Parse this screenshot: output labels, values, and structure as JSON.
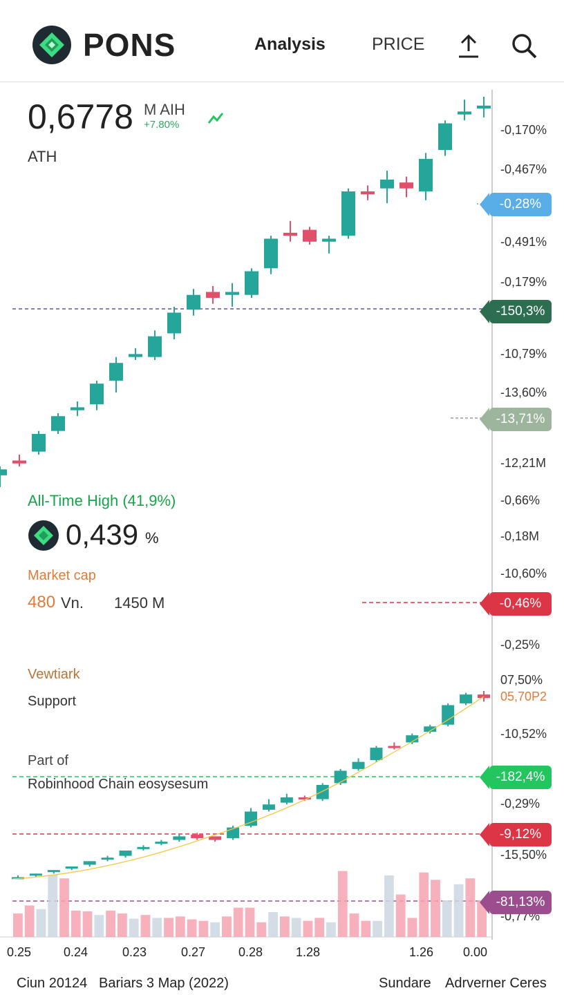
{
  "header": {
    "app_name": "PONS",
    "nav_analysis": "Analysis",
    "nav_price": "PRICE"
  },
  "summary": {
    "price": "0,6778",
    "unit": "M AIH",
    "change": "+7.80%",
    "ath_label": "ATH",
    "all_time_high": "All-Time High (41,9%)",
    "token_value": "0,439",
    "token_unit": "%",
    "market_cap_label": "Market cap",
    "market_cap_value": "480",
    "market_cap_unit": "Vn.",
    "market_cap_second": "1450 M",
    "viewmark": "Vewtiark",
    "support": "Support",
    "part_of": "Part of",
    "ecosystem": "Robinhood Chain eosysesum"
  },
  "axis_ticks": [
    "-0,170%",
    "-0,467%",
    "-0,491%",
    "-0,179%",
    "-10,79%",
    "-13,60%",
    "-12,21M",
    "-0,66%",
    "-0,18M",
    "-10,60%",
    "-0,25%",
    "07,50%",
    "05,70P2",
    "-10,52%",
    "-0,29%",
    "-15,50%",
    "-0,77%"
  ],
  "price_tags": [
    {
      "label": "-0,28%",
      "color": "#5aaee8"
    },
    {
      "label": "-150,3%",
      "color": "#2c6e4f"
    },
    {
      "label": "-13,71%",
      "color": "#9db59c"
    },
    {
      "label": "-0,46%",
      "color": "#dc3545"
    },
    {
      "label": "-182,4%",
      "color": "#22c55e"
    },
    {
      "label": "-9,12%",
      "color": "#dc3545"
    },
    {
      "label": "-81,13%",
      "color": "#9b4d8e"
    }
  ],
  "x_axis": [
    "0.25",
    "0.24",
    "0.23",
    "0.27",
    "0.28",
    "1.28",
    "1.26",
    "0.00"
  ],
  "footer": {
    "left": "Ciun 20124",
    "middle": "Bariars 3 Map  (2022)",
    "right_a": "Sundare",
    "right_b": "Adrverner Ceres"
  },
  "colors": {
    "up": "#26a69a",
    "down": "#e0506a",
    "accent": "#22c55e"
  },
  "icons": [
    "logo-icon",
    "upload-icon",
    "search-icon",
    "trend-icon",
    "token-icon"
  ],
  "chart_data": [
    {
      "type": "candlestick",
      "title": "",
      "series": [
        {
          "values": [
            [
              0.1,
              0.12,
              0.06,
              0.13
            ],
            [
              0.15,
              0.14,
              0.13,
              0.17
            ],
            [
              0.18,
              0.24,
              0.17,
              0.25
            ],
            [
              0.25,
              0.3,
              0.24,
              0.31
            ],
            [
              0.32,
              0.33,
              0.3,
              0.35
            ],
            [
              0.34,
              0.41,
              0.32,
              0.42
            ],
            [
              0.42,
              0.48,
              0.38,
              0.5
            ],
            [
              0.5,
              0.51,
              0.49,
              0.53
            ],
            [
              0.5,
              0.57,
              0.49,
              0.59
            ],
            [
              0.58,
              0.65,
              0.56,
              0.67
            ],
            [
              0.66,
              0.71,
              0.64,
              0.73
            ],
            [
              0.72,
              0.7,
              0.68,
              0.74
            ],
            [
              0.71,
              0.72,
              0.67,
              0.75
            ],
            [
              0.71,
              0.79,
              0.7,
              0.8
            ],
            [
              0.8,
              0.9,
              0.78,
              0.91
            ],
            [
              0.92,
              0.91,
              0.89,
              0.96
            ],
            [
              0.93,
              0.89,
              0.88,
              0.94
            ],
            [
              0.89,
              0.9,
              0.85,
              0.91
            ],
            [
              0.91,
              1.06,
              0.9,
              1.07
            ],
            [
              1.06,
              1.05,
              1.03,
              1.08
            ],
            [
              1.07,
              1.1,
              1.02,
              1.13
            ],
            [
              1.09,
              1.07,
              1.04,
              1.11
            ],
            [
              1.06,
              1.17,
              1.03,
              1.19
            ],
            [
              1.2,
              1.29,
              1.18,
              1.3
            ],
            [
              1.32,
              1.33,
              1.3,
              1.37
            ],
            [
              1.34,
              1.35,
              1.31,
              1.38
            ]
          ]
        }
      ]
    },
    {
      "type": "candlestick",
      "title": "",
      "series": [
        {
          "values": [
            [
              0.1,
              0.1,
              0.09,
              0.11
            ],
            [
              0.11,
              0.12,
              0.1,
              0.12
            ],
            [
              0.13,
              0.14,
              0.12,
              0.14
            ],
            [
              0.15,
              0.16,
              0.14,
              0.16
            ],
            [
              0.17,
              0.19,
              0.16,
              0.19
            ],
            [
              0.2,
              0.21,
              0.19,
              0.22
            ],
            [
              0.22,
              0.25,
              0.21,
              0.25
            ],
            [
              0.26,
              0.27,
              0.25,
              0.28
            ],
            [
              0.29,
              0.3,
              0.28,
              0.31
            ],
            [
              0.31,
              0.33,
              0.3,
              0.34
            ],
            [
              0.34,
              0.32,
              0.31,
              0.35
            ],
            [
              0.33,
              0.31,
              0.3,
              0.33
            ],
            [
              0.32,
              0.38,
              0.31,
              0.39
            ],
            [
              0.39,
              0.47,
              0.38,
              0.49
            ],
            [
              0.48,
              0.51,
              0.47,
              0.54
            ],
            [
              0.52,
              0.55,
              0.51,
              0.57
            ],
            [
              0.55,
              0.54,
              0.53,
              0.56
            ],
            [
              0.54,
              0.62,
              0.53,
              0.63
            ],
            [
              0.63,
              0.7,
              0.62,
              0.71
            ],
            [
              0.71,
              0.75,
              0.7,
              0.77
            ],
            [
              0.76,
              0.83,
              0.75,
              0.84
            ],
            [
              0.84,
              0.83,
              0.82,
              0.86
            ],
            [
              0.86,
              0.9,
              0.85,
              0.91
            ],
            [
              0.92,
              0.95,
              0.91,
              0.96
            ],
            [
              0.96,
              1.07,
              0.95,
              1.08
            ],
            [
              1.08,
              1.13,
              1.07,
              1.14
            ],
            [
              1.13,
              1.11,
              1.09,
              1.15
            ]
          ]
        }
      ]
    },
    {
      "type": "bar",
      "title": "",
      "values": [
        32,
        43,
        38,
        85,
        80,
        36,
        35,
        30,
        36,
        32,
        25,
        30,
        26,
        26,
        28,
        24,
        22,
        20,
        28,
        40,
        40,
        20,
        34,
        28,
        26,
        22,
        26,
        20,
        90,
        32,
        22,
        22,
        84,
        58,
        26,
        88,
        78,
        50,
        72,
        80,
        50
      ],
      "ylim": [
        0,
        100
      ]
    }
  ]
}
